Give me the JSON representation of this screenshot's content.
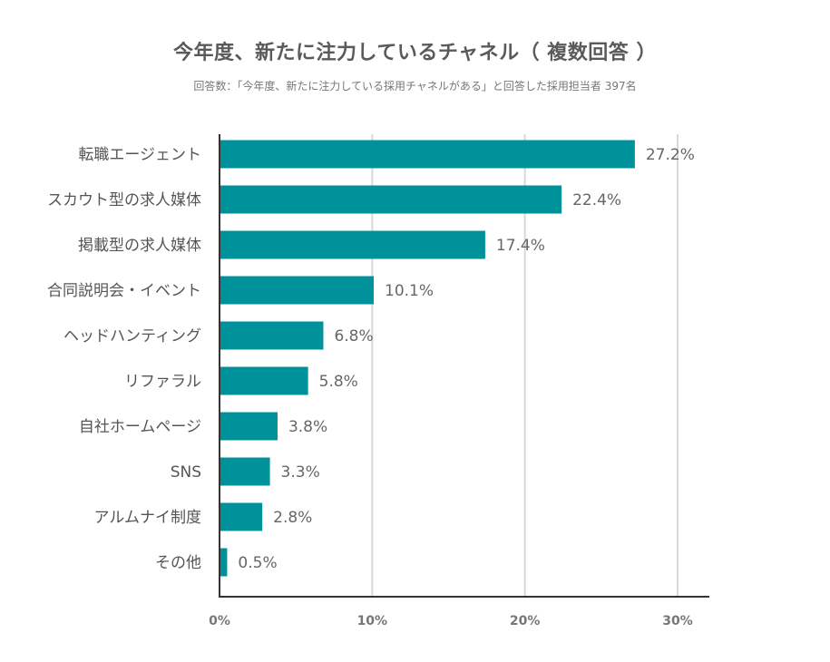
{
  "chart_data": {
    "type": "bar",
    "orientation": "horizontal",
    "title": "今年度、新たに注力しているチャネル（ 複数回答 ）",
    "subtitle": "回答数：「今年度、新たに注力している採用チャネルがある」と回答した採用担当者 397名",
    "categories": [
      "転職エージェント",
      "スカウト型の求人媒体",
      "掲載型の求人媒体",
      "合同説明会・イベント",
      "ヘッドハンティング",
      "リファラル",
      "自社ホームページ",
      "SNS",
      "アルムナイ制度",
      "その他"
    ],
    "values": [
      27.2,
      22.4,
      17.4,
      10.1,
      6.8,
      5.8,
      3.8,
      3.3,
      2.8,
      0.5
    ],
    "value_labels": [
      "27.2%",
      "22.4%",
      "17.4%",
      "10.1%",
      "6.8%",
      "5.8%",
      "3.8%",
      "3.3%",
      "2.8%",
      "0.5%"
    ],
    "xlim": [
      0,
      30
    ],
    "xticks": [
      0,
      10,
      20,
      30
    ],
    "xtick_labels": [
      "0%",
      "10%",
      "20%",
      "30%"
    ],
    "grid": true,
    "bar_color": "#00929a",
    "grid_color": "#d9d9d9",
    "axis_color": "#333333"
  }
}
